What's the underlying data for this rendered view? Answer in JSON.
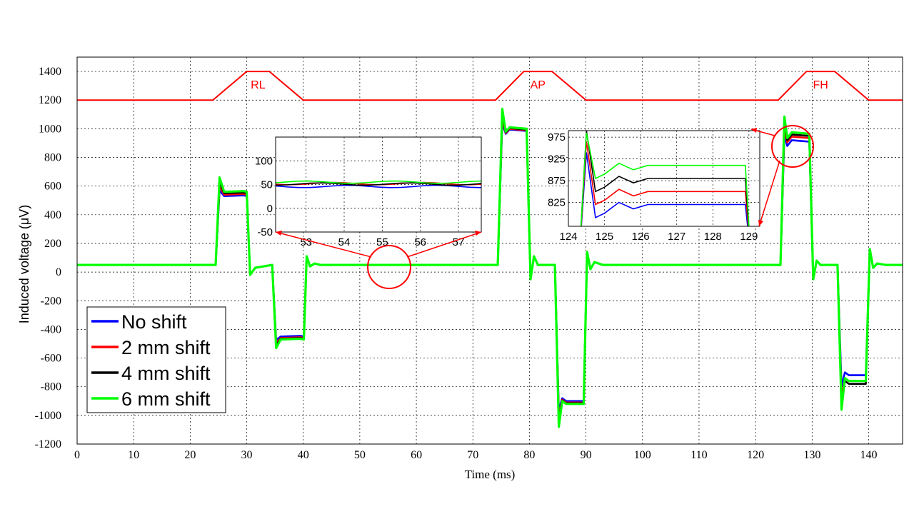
{
  "chart_data": {
    "type": "line",
    "title": "",
    "xlabel": "Time  (ms)",
    "ylabel": "Induced voltage (μV)",
    "xlim": [
      0,
      146
    ],
    "ylim": [
      -1200,
      1500
    ],
    "xticks": [
      "0",
      "10",
      "20",
      "30",
      "40",
      "50",
      "60",
      "70",
      "80",
      "90",
      "100",
      "110",
      "120",
      "130",
      "140"
    ],
    "yticks": [
      "1400",
      "1200",
      "1000",
      "800",
      "600",
      "400",
      "200",
      "0",
      "-200",
      "-400",
      "-600",
      "-800",
      "-1000",
      "-1200"
    ],
    "grid": true,
    "legend_position": "bottom-left",
    "series": [
      {
        "name": "No shift",
        "color": "#0000ff",
        "plateaus": {
          "rl_pos": 530,
          "rl_neg": -450,
          "ap_pos": 985,
          "ap_neg": -900,
          "fh_pos": 910,
          "fh_neg": -720
        }
      },
      {
        "name": "2 mm shift",
        "color": "#ff0000",
        "plateaus": {
          "rl_pos": 540,
          "rl_neg": -460,
          "ap_pos": 990,
          "ap_neg": -910,
          "fh_pos": 935,
          "fh_neg": -760
        }
      },
      {
        "name": "4 mm shift",
        "color": "#000000",
        "plateaus": {
          "rl_pos": 550,
          "rl_neg": -465,
          "ap_pos": 995,
          "ap_neg": -915,
          "fh_pos": 950,
          "fh_neg": -780
        }
      },
      {
        "name": "6 mm shift",
        "color": "#00ff00",
        "plateaus": {
          "rl_pos": 560,
          "rl_neg": -470,
          "ap_pos": 1000,
          "ap_neg": -920,
          "fh_pos": 965,
          "fh_neg": -760
        }
      }
    ],
    "baseline": 50,
    "gradient_markers": {
      "color": "#ff0000",
      "level": 1200,
      "peak": 1400,
      "pulses": [
        {
          "label": "RL",
          "start": 24,
          "top_start": 30,
          "top_end": 34,
          "end": 40
        },
        {
          "label": "AP",
          "start": 74,
          "top_start": 79,
          "top_end": 84,
          "end": 90
        },
        {
          "label": "FH",
          "start": 124,
          "top_start": 129,
          "top_end": 134,
          "end": 140
        }
      ]
    },
    "insets": [
      {
        "xlim": [
          52.2,
          57.6
        ],
        "ylim": [
          -50,
          150
        ],
        "xticks": [
          "53",
          "54",
          "55",
          "56",
          "57"
        ],
        "yticks": [
          "100",
          "50",
          "0",
          "-50"
        ],
        "values": {
          "No shift": 46,
          "2 mm shift": 52,
          "4 mm shift": 51,
          "6 mm shift": 55
        }
      },
      {
        "xlim": [
          124,
          129.3
        ],
        "ylim": [
          770,
          990
        ],
        "xticks": [
          "124",
          "125",
          "126",
          "127",
          "128",
          "129"
        ],
        "yticks": [
          "975",
          "925",
          "875",
          "825"
        ],
        "values": {
          "No shift": 820,
          "2 mm shift": 850,
          "4 mm shift": 880,
          "6 mm shift": 910
        }
      }
    ]
  }
}
